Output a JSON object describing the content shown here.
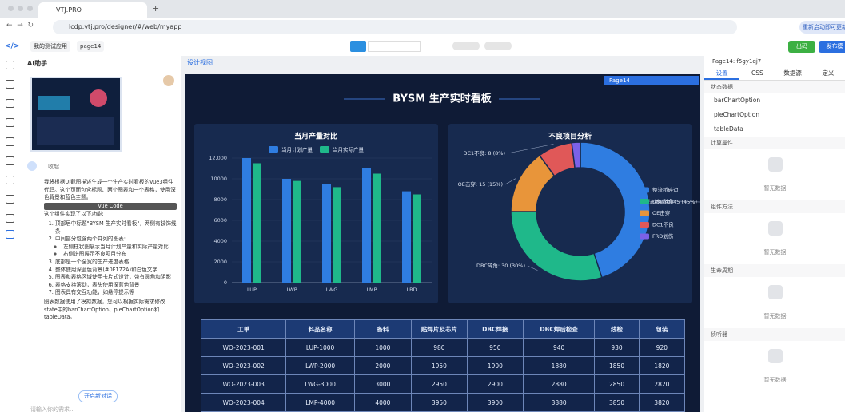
{
  "browser": {
    "tab_title": "VTJ.PRO",
    "url": "lcdp.vtj.pro/designer/#/web/myapp",
    "update_button": "重新启动即可更新"
  },
  "toolbar": {
    "app_name": "我的测试应用",
    "page_name": "page14",
    "export_button": "出码",
    "publish_button": "发布模"
  },
  "ai_panel": {
    "title": "AI助手",
    "collapse": "收起",
    "intro": "我将根据UI截图描述生成一个生产实时看板的Vue3组件代码。这个页面包含标题、两个图表和一个表格，使用深色背景和蓝色主题。",
    "code_tag": "Vue Code",
    "features_heading": "这个组件实现了以下功能:",
    "features": [
      {
        "text": "顶部居中标题\"BYSM 生产实时看板\"，两侧有装饰线条"
      },
      {
        "text": "中间部分包含两个并列的图表:",
        "sub": [
          "左侧柱状图展示当月计划产量和实际产量对比",
          "右侧饼图展示不良项目分布"
        ]
      },
      {
        "text": "底部是一个全宽的生产进度表格"
      },
      {
        "text": "整体使用深蓝色背景(#0F172A)和白色文字"
      },
      {
        "text": "图表和表格区域使用卡片式设计，带有圆角和阴影"
      },
      {
        "text": "表格支持滚动，表头使用深蓝色背景"
      },
      {
        "text": "图表具有交互功能，如悬停提示等"
      }
    ],
    "summary": "图表数据使用了模拟数据，您可以根据实际需求修改state中的barChartOption、pieChartOption和tableData。",
    "new_chat": "开启新对话",
    "input_placeholder": "请输入你的需求..."
  },
  "canvas": {
    "tab": "设计视图",
    "page_badge": "Page14"
  },
  "dashboard": {
    "title": "BYSM 生产实时看板",
    "bar_chart": {
      "type": "bar",
      "title": "当月产量对比",
      "categories": [
        "LUP",
        "LWP",
        "LWG",
        "LMP",
        "LBD"
      ],
      "series": [
        {
          "name": "当月计划产量",
          "color": "#2f7de1",
          "values": [
            12000,
            10000,
            9500,
            11000,
            8800
          ]
        },
        {
          "name": "当月实际产量",
          "color": "#1fb88a",
          "values": [
            11500,
            9800,
            9200,
            10500,
            8500
          ]
        }
      ],
      "ylim": [
        0,
        12000
      ],
      "yticks": [
        0,
        2000,
        4000,
        6000,
        8000,
        10000,
        {
          "value": 12000,
          "label": "12,000"
        }
      ],
      "yticks_labels_note_free": null
    },
    "pie_chart": {
      "type": "pie",
      "title": "不良项目分析",
      "categories": [
        "整流桥碎边",
        "DBC碎角",
        "OE击穿",
        "DC1不良",
        "FRD划伤"
      ],
      "colors": [
        "#2f7de1",
        "#1fb88a",
        "#e8953a",
        "#e05858",
        "#7b61e8"
      ],
      "values": [
        45,
        30,
        15,
        8,
        2
      ],
      "value_labels": [
        "整流桥碎边: 45 (45%)",
        "DBC碎角: 30 (30%)",
        "OE击穿: 15 (15%)",
        "DC1不良: 8 (8%)",
        null
      ]
    },
    "table": {
      "columns": [
        "工单",
        "料品名称",
        "备料",
        "贴焊片及芯片",
        "DBC焊接",
        "DBC焊后检查",
        "线检",
        "包装"
      ],
      "rows": [
        [
          "WO-2023-001",
          "LUP-1000",
          1000,
          980,
          950,
          940,
          930,
          920
        ],
        [
          "WO-2023-002",
          "LWP-2000",
          2000,
          1950,
          1900,
          1880,
          1850,
          1820
        ],
        [
          "WO-2023-003",
          "LWG-3000",
          3000,
          2950,
          2900,
          2880,
          2850,
          2820
        ],
        [
          "WO-2023-004",
          "LMP-4000",
          4000,
          3950,
          3900,
          3880,
          3850,
          3820
        ]
      ]
    }
  },
  "right_panel": {
    "page_id": "Page14: f5gy1qj7",
    "tabs": [
      "设置",
      "CSS",
      "数据源",
      "定义"
    ],
    "sections": [
      {
        "title": "状态数据",
        "items": [
          "barChartOption",
          "pieChartOption",
          "tableData"
        ]
      },
      {
        "title": "计算属性",
        "empty": "暂无数据"
      },
      {
        "title": "组件方法",
        "empty": "暂无数据"
      },
      {
        "title": "生命周期",
        "empty": "暂无数据"
      },
      {
        "title": "侦听器",
        "empty": "暂无数据"
      }
    ]
  }
}
